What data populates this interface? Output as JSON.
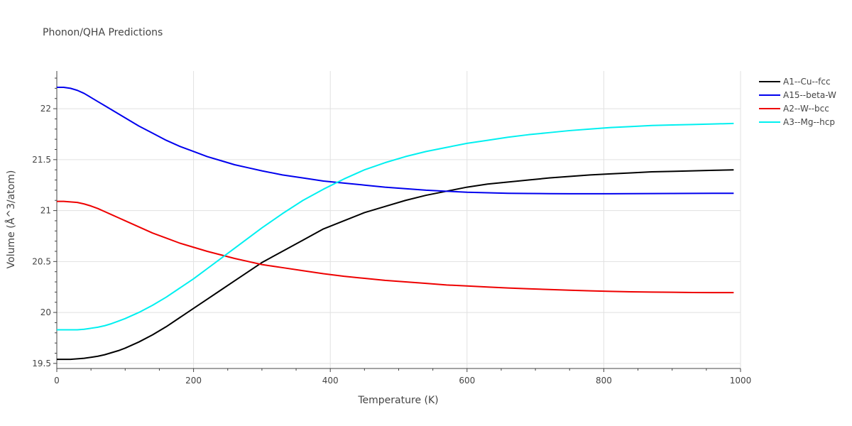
{
  "chart_data": {
    "type": "line",
    "title": "Phonon/QHA Predictions",
    "xlabel": "Temperature (K)",
    "ylabel": "Volume (Å^3/atom)",
    "xlim": [
      0,
      1000
    ],
    "ylim": [
      19.45,
      22.37
    ],
    "x_ticks": [
      0,
      200,
      400,
      600,
      800,
      1000
    ],
    "y_ticks": [
      19.5,
      20,
      20.5,
      21,
      21.5,
      22
    ],
    "x_tick_labels": [
      "0",
      "200",
      "400",
      "600",
      "800",
      "1000"
    ],
    "y_tick_labels": [
      "19.5",
      "20",
      "20.5",
      "21",
      "21.5",
      "22"
    ],
    "grid": true,
    "legend_position": "top-right",
    "x": [
      0,
      10,
      20,
      30,
      40,
      50,
      60,
      70,
      80,
      90,
      100,
      120,
      140,
      160,
      180,
      200,
      220,
      240,
      260,
      280,
      300,
      330,
      360,
      390,
      420,
      450,
      480,
      510,
      540,
      570,
      600,
      630,
      660,
      690,
      720,
      750,
      780,
      810,
      840,
      870,
      900,
      930,
      960,
      990
    ],
    "series": [
      {
        "name": "A1--Cu--fcc",
        "color": "#000000",
        "values": [
          19.54,
          19.54,
          19.54,
          19.545,
          19.55,
          19.56,
          19.57,
          19.585,
          19.605,
          19.625,
          19.65,
          19.71,
          19.78,
          19.86,
          19.95,
          20.04,
          20.13,
          20.22,
          20.31,
          20.4,
          20.49,
          20.6,
          20.71,
          20.82,
          20.9,
          20.98,
          21.04,
          21.1,
          21.15,
          21.19,
          21.23,
          21.26,
          21.28,
          21.3,
          21.32,
          21.335,
          21.35,
          21.36,
          21.37,
          21.38,
          21.385,
          21.39,
          21.395,
          21.4
        ]
      },
      {
        "name": "A15--beta-W",
        "color": "#0000ee",
        "values": [
          22.21,
          22.21,
          22.2,
          22.18,
          22.15,
          22.11,
          22.07,
          22.03,
          21.99,
          21.95,
          21.91,
          21.83,
          21.76,
          21.69,
          21.63,
          21.58,
          21.53,
          21.49,
          21.45,
          21.42,
          21.39,
          21.35,
          21.32,
          21.29,
          21.27,
          21.25,
          21.23,
          21.215,
          21.2,
          21.19,
          21.18,
          21.175,
          21.17,
          21.168,
          21.166,
          21.165,
          21.165,
          21.165,
          21.166,
          21.167,
          21.168,
          21.169,
          21.17,
          21.17
        ]
      },
      {
        "name": "A2--W--bcc",
        "color": "#ee0000",
        "values": [
          21.09,
          21.09,
          21.085,
          21.08,
          21.065,
          21.045,
          21.02,
          20.99,
          20.96,
          20.93,
          20.9,
          20.84,
          20.78,
          20.73,
          20.68,
          20.64,
          20.6,
          20.565,
          20.53,
          20.5,
          20.47,
          20.44,
          20.41,
          20.38,
          20.355,
          20.335,
          20.315,
          20.3,
          20.285,
          20.27,
          20.26,
          20.25,
          20.24,
          20.232,
          20.225,
          20.218,
          20.212,
          20.207,
          20.203,
          20.2,
          20.198,
          20.196,
          20.195,
          20.195
        ]
      },
      {
        "name": "A3--Mg--hcp",
        "color": "#00f0f0",
        "values": [
          19.83,
          19.83,
          19.83,
          19.83,
          19.835,
          19.845,
          19.855,
          19.87,
          19.89,
          19.915,
          19.94,
          20.0,
          20.07,
          20.15,
          20.24,
          20.33,
          20.43,
          20.53,
          20.63,
          20.73,
          20.83,
          20.97,
          21.1,
          21.21,
          21.31,
          21.4,
          21.47,
          21.53,
          21.58,
          21.62,
          21.66,
          21.69,
          21.72,
          21.745,
          21.765,
          21.785,
          21.8,
          21.815,
          21.825,
          21.835,
          21.84,
          21.845,
          21.85,
          21.855
        ]
      }
    ]
  }
}
